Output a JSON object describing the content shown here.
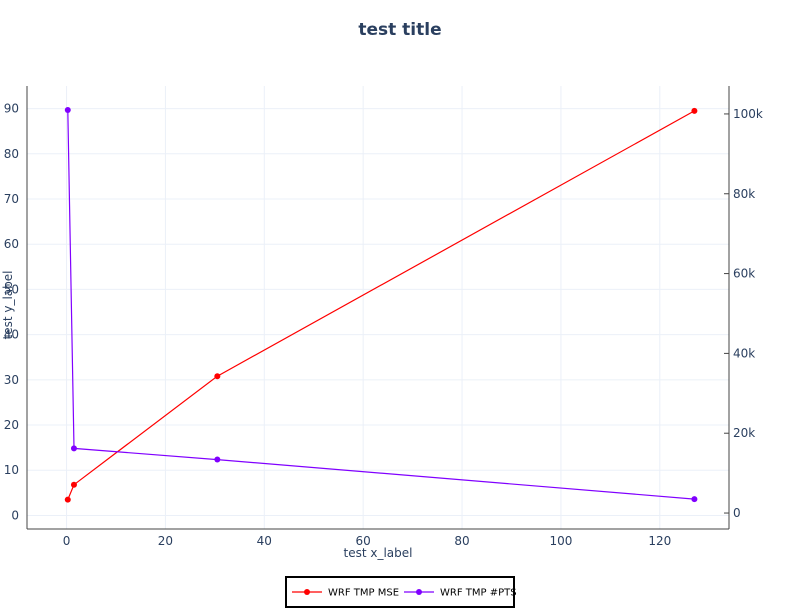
{
  "chart_data": {
    "type": "line",
    "title": "test title",
    "xlabel": "test x_label",
    "ylabel": "test y_label",
    "xlim": [
      -8,
      134
    ],
    "ylim": [
      -3,
      95
    ],
    "y2lim": [
      -4000,
      107000
    ],
    "x_ticks": [
      0,
      20,
      40,
      60,
      80,
      100,
      120
    ],
    "y_ticks": [
      0,
      10,
      20,
      30,
      40,
      50,
      60,
      70,
      80,
      90
    ],
    "y2_ticks": [
      0,
      20000,
      40000,
      60000,
      80000,
      100000
    ],
    "y2_tick_labels": [
      "0",
      "20k",
      "40k",
      "60k",
      "80k",
      "100k"
    ],
    "grid": true,
    "legend_position": "bottom-center",
    "series": [
      {
        "name": "WRF TMP MSE",
        "axis": "y",
        "color": "#ff0000",
        "x": [
          0.25,
          1.5,
          30.5,
          127
        ],
        "y": [
          3.5,
          6.8,
          30.8,
          89.5
        ]
      },
      {
        "name": "WRF TMP #PTS",
        "axis": "y2",
        "color": "#8000ff",
        "x": [
          0.25,
          1.5,
          30.5,
          127
        ],
        "y": [
          101000,
          16200,
          13400,
          3500
        ]
      }
    ]
  }
}
